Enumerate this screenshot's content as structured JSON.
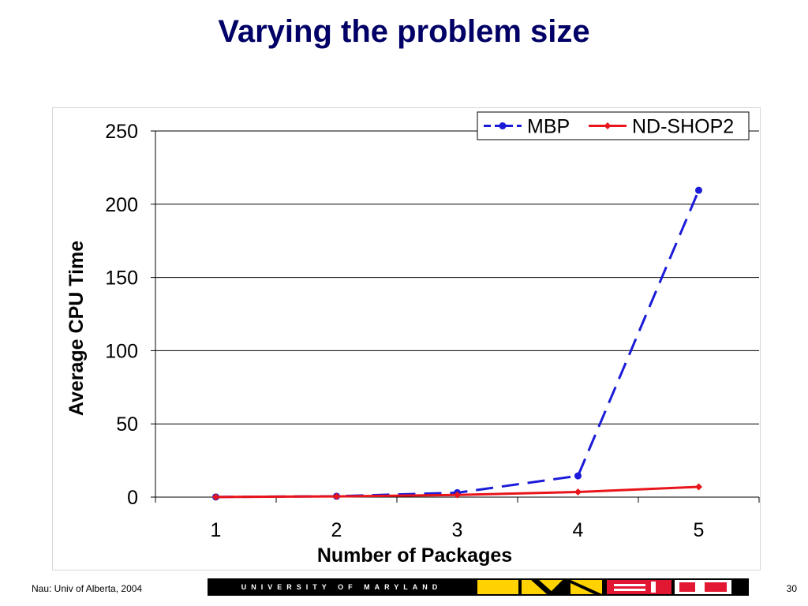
{
  "slide": {
    "title": "Varying the problem size",
    "footer_left": "Nau: Univ of Alberta, 2004",
    "page_number": "30",
    "banner_text": "UNIVERSITY OF MARYLAND"
  },
  "chart_data": {
    "type": "line",
    "title": "",
    "xlabel": "Number of Packages",
    "ylabel": "Average CPU Time",
    "categories": [
      "1",
      "2",
      "3",
      "4",
      "5"
    ],
    "ylim": [
      0,
      250
    ],
    "yticks": [
      0,
      50,
      100,
      150,
      200,
      250
    ],
    "grid": true,
    "legend_position": "top-right",
    "series": [
      {
        "name": "MBP",
        "values": [
          0.1,
          0.6,
          3,
          14.5,
          209.5
        ],
        "color": "#1b1bd9",
        "line_style": "dashed",
        "marker": "circle"
      },
      {
        "name": "ND-SHOP2",
        "values": [
          0.1,
          0.5,
          1.5,
          3.5,
          7
        ],
        "color": "#e8151b",
        "line_style": "solid",
        "marker": "diamond"
      }
    ]
  },
  "colors": {
    "title": "#000066",
    "umd_red": "#e21833",
    "umd_gold": "#ffd200",
    "umd_black": "#000000"
  }
}
